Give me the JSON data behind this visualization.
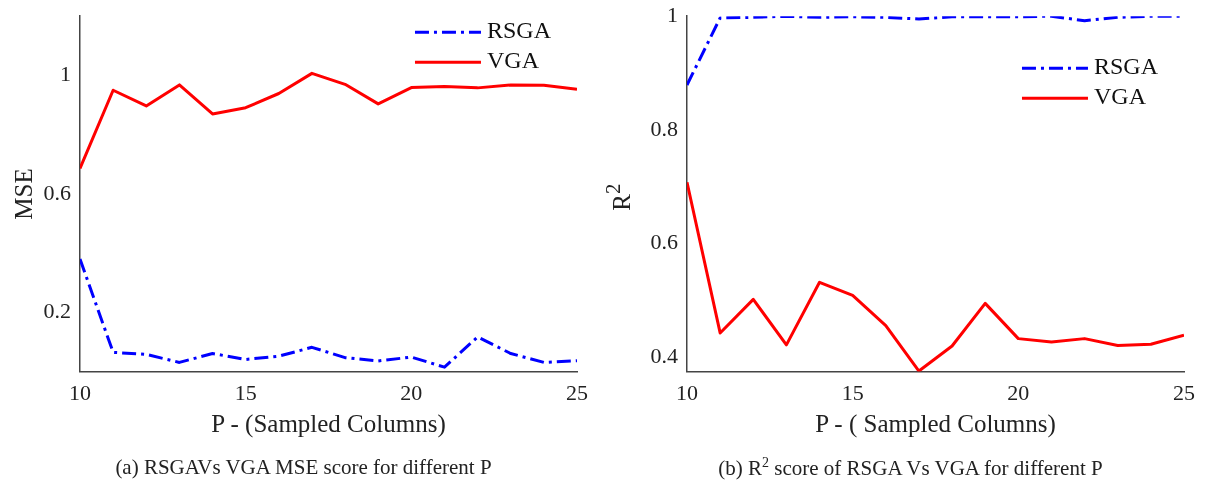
{
  "chart_data": [
    {
      "type": "line",
      "xlabel": "P - (Sampled Columns)",
      "ylabel": "MSE",
      "x": [
        10,
        11,
        12,
        13,
        14,
        15,
        16,
        17,
        18,
        19,
        20,
        21,
        22,
        23,
        24,
        25
      ],
      "xlim": [
        10,
        25
      ],
      "xticks": [
        10,
        15,
        20,
        25
      ],
      "ylim": [
        0,
        1.2
      ],
      "yticks": [
        0.2,
        0.6,
        1
      ],
      "grid": false,
      "legend": "top right",
      "marker": "none",
      "series": [
        {
          "name": "RSGA",
          "color": "#0000ff",
          "line_style": "dashed",
          "values": [
            0.38,
            0.065,
            0.058,
            0.031,
            0.061,
            0.041,
            0.052,
            0.082,
            0.047,
            0.036,
            0.049,
            0.015,
            0.117,
            0.061,
            0.031,
            0.037
          ]
        },
        {
          "name": "VGA",
          "color": "#ff0000",
          "line_style": "solid",
          "values": [
            0.686,
            0.95,
            0.897,
            0.968,
            0.87,
            0.891,
            0.939,
            1.007,
            0.97,
            0.904,
            0.959,
            0.963,
            0.958,
            0.968,
            0.967,
            0.953
          ]
        }
      ],
      "annotations": [
        "(a) RSGAVs VGA MSE score for different P"
      ]
    },
    {
      "type": "line",
      "xlabel": "P - ( Sampled Columns)",
      "ylabel": "R$^{2}$",
      "x": [
        10,
        11,
        12,
        13,
        14,
        15,
        16,
        17,
        18,
        19,
        20,
        21,
        22,
        23,
        24,
        25
      ],
      "xlim": [
        10,
        25
      ],
      "xticks": [
        10,
        15,
        20,
        25
      ],
      "ylim": [
        0.375,
        1
      ],
      "yticks": [
        0.4,
        0.6,
        0.8,
        1
      ],
      "grid": false,
      "legend": "top right",
      "marker": "none",
      "series": [
        {
          "name": "RSGA",
          "color": "#0000ff",
          "line_style": "dashed",
          "values": [
            0.879,
            0.997,
            0.998,
            1,
            0.998,
            0.999,
            0.998,
            0.995,
            0.999,
            0.999,
            0.999,
            1,
            0.992,
            0.998,
            1,
            1
          ]
        },
        {
          "name": "VGA",
          "color": "#ff0000",
          "line_style": "solid",
          "values": [
            0.708,
            0.443,
            0.502,
            0.422,
            0.532,
            0.509,
            0.456,
            0.376,
            0.42,
            0.495,
            0.433,
            0.427,
            0.433,
            0.421,
            0.423,
            0.439
          ]
        }
      ],
      "annotations": [
        "(b) R$^{2}$ score of RSGA Vs VGA for different P"
      ]
    }
  ]
}
